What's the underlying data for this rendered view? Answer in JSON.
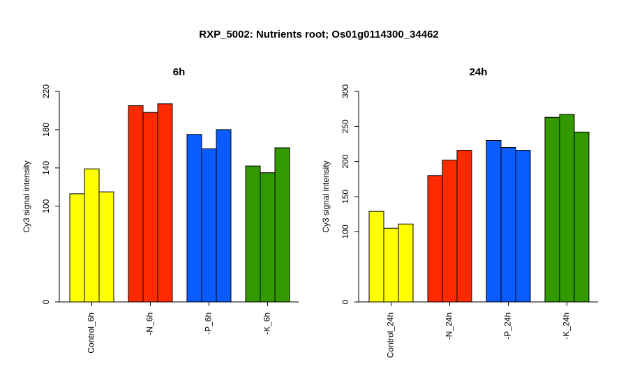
{
  "figure": {
    "title": "RXP_5002: Nutrients root; Os01g0114300_34462"
  },
  "chart_data": [
    {
      "type": "bar",
      "title": "6h",
      "ylabel": "Cy3 signal intensity",
      "xlabel": "",
      "ylim": [
        0,
        220
      ],
      "yticks": [
        "0",
        "100",
        "140",
        "180",
        "220"
      ],
      "grid": false,
      "groups": [
        {
          "label": "Control_6h",
          "color": "#ffff00",
          "values": [
            113,
            139,
            115
          ]
        },
        {
          "label": "-N_6h",
          "color": "#ff2a00",
          "values": [
            205,
            198,
            207
          ]
        },
        {
          "label": "-P_6h",
          "color": "#0a5cff",
          "values": [
            175,
            160,
            180
          ]
        },
        {
          "label": "-K_6h",
          "color": "#339900",
          "values": [
            142,
            135,
            161
          ]
        }
      ]
    },
    {
      "type": "bar",
      "title": "24h",
      "ylabel": "Cy3 signal intensity",
      "xlabel": "",
      "ylim": [
        0,
        300
      ],
      "yticks": [
        "0",
        "100",
        "150",
        "200",
        "250",
        "300"
      ],
      "grid": false,
      "groups": [
        {
          "label": "Control_24h",
          "color": "#ffff00",
          "values": [
            129,
            105,
            111
          ]
        },
        {
          "label": "-N_24h",
          "color": "#ff2a00",
          "values": [
            180,
            202,
            216
          ]
        },
        {
          "label": "-P_24h",
          "color": "#0a5cff",
          "values": [
            230,
            220,
            216
          ]
        },
        {
          "label": "-K_24h",
          "color": "#339900",
          "values": [
            263,
            267,
            242
          ]
        }
      ]
    }
  ]
}
